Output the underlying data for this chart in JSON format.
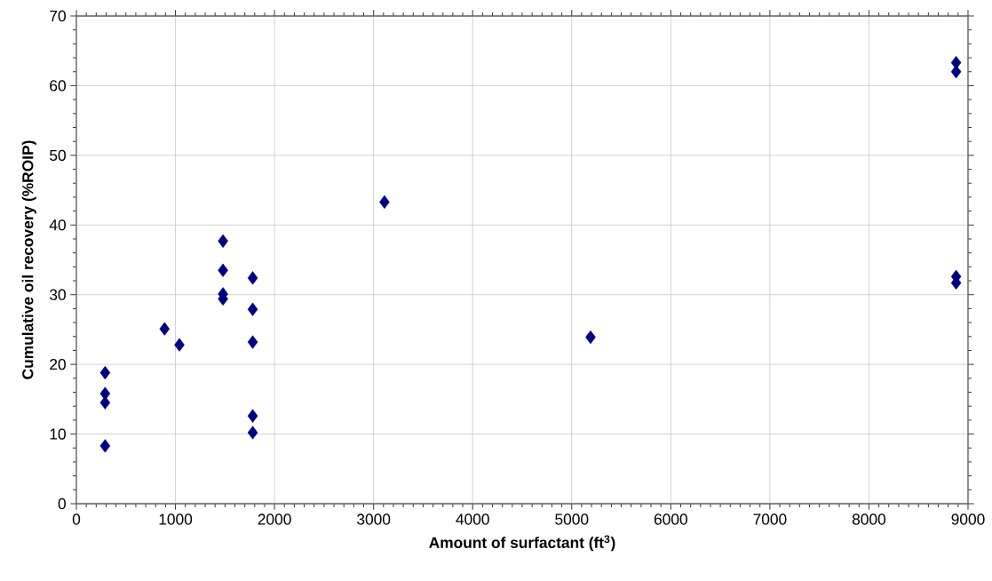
{
  "chart_data": {
    "type": "scatter",
    "xlabel": "Amount of surfactant (ft$^{3}$)",
    "ylabel": "Cumulative oil recovery (%ROIP)",
    "x": [
      290,
      290,
      290,
      290,
      890,
      1040,
      1480,
      1480,
      1480,
      1480,
      1780,
      1780,
      1780,
      1780,
      1780,
      3110,
      5190,
      8880,
      8880,
      8880,
      8880
    ],
    "series": [
      {
        "color": "#000080",
        "values": [
          18.8,
          15.8,
          14.5,
          8.3,
          25.1,
          22.8,
          37.7,
          33.5,
          30.1,
          29.4,
          32.4,
          27.9,
          23.2,
          12.6,
          10.2,
          43.3,
          23.9,
          63.3,
          62.0,
          32.6,
          31.7
        ]
      }
    ],
    "xlim": [
      0,
      9000
    ],
    "ylim": [
      0,
      70
    ],
    "xticks": [
      0,
      1000,
      2000,
      3000,
      4000,
      5000,
      6000,
      7000,
      8000,
      9000
    ],
    "yticks": [
      0,
      10,
      20,
      30,
      40,
      50,
      60,
      70
    ],
    "grid": true,
    "marker": "diamond"
  }
}
